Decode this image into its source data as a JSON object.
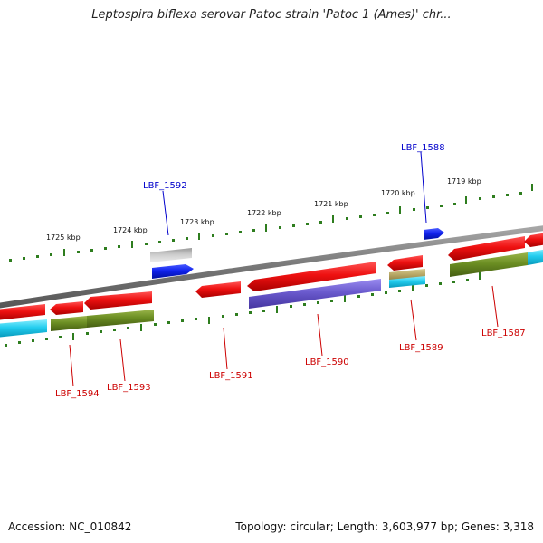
{
  "title": "Leptospira biflexa serovar Patoc strain 'Patoc 1 (Ames)' chr...",
  "footer": {
    "accession": "Accession: NC_010842",
    "summary": "Topology: circular; Length: 3,603,977 bp; Genes: 3,318"
  },
  "ruler": {
    "labels": [
      "1725 kbp",
      "1724 kbp",
      "1723 kbp",
      "1722 kbp",
      "1721 kbp",
      "1720 kbp",
      "1719 kbp"
    ],
    "color": "#2e7d1e"
  },
  "genes": {
    "LBF_1592": "LBF_1592",
    "LBF_1588": "LBF_1588",
    "LBF_1594": "LBF_1594",
    "LBF_1593": "LBF_1593",
    "LBF_1591": "LBF_1591",
    "LBF_1590": "LBF_1590",
    "LBF_1589": "LBF_1589",
    "LBF_1587": "LBF_1587"
  },
  "colors": {
    "red_feature": "#ee1111",
    "blue_feature": "#1122ee",
    "cyan_feature": "#22ccee",
    "olive_feature": "#6b8e23",
    "purple_feature": "#6a5acd",
    "backbone": "#777777",
    "label_red": "#cc0000",
    "label_blue": "#0000cc"
  }
}
